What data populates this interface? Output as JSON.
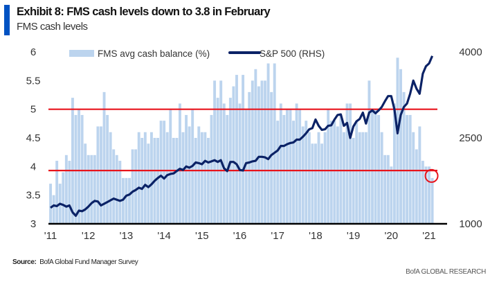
{
  "header": {
    "title": "Exhibit 8: FMS cash levels down to 3.8 in February",
    "subtitle": "FMS cash levels"
  },
  "footer": {
    "source_label": "Source:",
    "source_text": "BofA Global Fund Manager Survey",
    "brand": "BofA GLOBAL RESEARCH"
  },
  "colors": {
    "bars": "#bcd4ee",
    "line": "#0b2266",
    "reference_lines": "#e8141c",
    "accent": "#0052c2"
  },
  "chart_data": {
    "type": "bar+line",
    "x_tick_labels": [
      "'11",
      "'12",
      "'13",
      "'14",
      "'15",
      "'16",
      "'17",
      "'18",
      "'19",
      "'20",
      "'21"
    ],
    "x_start": "2011-01",
    "x_end": "2021-02",
    "frequency": "monthly",
    "y_left": {
      "range": [
        3,
        6
      ],
      "ticks": [
        "3",
        "3.5",
        "4",
        "4.5",
        "5",
        "5.5",
        "6"
      ]
    },
    "y_right": {
      "range": [
        1000,
        4000
      ],
      "ticks": [
        "1000",
        "2500",
        "4000"
      ]
    },
    "legend_position": "top",
    "series": [
      {
        "name": "FMS avg cash balance (%)",
        "type": "bar",
        "axis": "left",
        "values": [
          3.7,
          3.5,
          4.1,
          3.7,
          3.9,
          4.2,
          4.1,
          5.2,
          4.9,
          5.0,
          4.9,
          4.4,
          4.2,
          4.2,
          4.2,
          4.7,
          4.7,
          5.3,
          4.9,
          4.6,
          4.3,
          4.2,
          4.1,
          3.8,
          3.8,
          3.8,
          4.3,
          4.3,
          4.6,
          4.5,
          4.6,
          4.4,
          4.6,
          4.5,
          4.5,
          4.8,
          4.8,
          4.6,
          5.0,
          4.5,
          4.5,
          5.1,
          4.6,
          4.9,
          4.7,
          5.0,
          4.5,
          4.7,
          4.6,
          4.6,
          4.5,
          4.9,
          5.5,
          5.2,
          5.5,
          5.1,
          4.9,
          5.2,
          5.4,
          5.6,
          5.1,
          5.6,
          5.0,
          5.3,
          5.5,
          5.7,
          5.4,
          5.5,
          5.5,
          5.8,
          5.3,
          5.8,
          4.8,
          5.1,
          4.9,
          5.0,
          5.0,
          4.8,
          5.1,
          5.0,
          4.7,
          4.8,
          4.6,
          4.4,
          4.4,
          4.6,
          4.4,
          4.6,
          5.0,
          4.8,
          4.8,
          4.7,
          4.9,
          4.6,
          5.1,
          5.1,
          4.5,
          4.8,
          4.6,
          4.6,
          4.6,
          5.5,
          5.0,
          5.0,
          4.9,
          4.6,
          4.2,
          4.2,
          4.0,
          5.1,
          5.9,
          5.7,
          5.3,
          4.9,
          4.9,
          4.6,
          4.3,
          4.7,
          4.1,
          4.0,
          4.0,
          3.8
        ]
      },
      {
        "name": "S&P 500 (RHS)",
        "type": "line",
        "axis": "right",
        "values": [
          1280,
          1320,
          1310,
          1350,
          1330,
          1300,
          1320,
          1200,
          1140,
          1230,
          1220,
          1250,
          1300,
          1360,
          1400,
          1390,
          1320,
          1350,
          1380,
          1410,
          1440,
          1420,
          1400,
          1420,
          1490,
          1510,
          1560,
          1590,
          1630,
          1610,
          1680,
          1640,
          1690,
          1750,
          1800,
          1840,
          1790,
          1850,
          1870,
          1880,
          1920,
          1960,
          1940,
          2000,
          1980,
          2010,
          2070,
          2060,
          2040,
          2100,
          2070,
          2090,
          2110,
          2080,
          2110,
          1970,
          1920,
          2080,
          2080,
          2040,
          1940,
          1930,
          2060,
          2070,
          2090,
          2100,
          2170,
          2170,
          2160,
          2130,
          2200,
          2240,
          2280,
          2360,
          2360,
          2390,
          2410,
          2420,
          2470,
          2470,
          2520,
          2580,
          2650,
          2670,
          2820,
          2710,
          2640,
          2650,
          2710,
          2720,
          2820,
          2900,
          2910,
          2710,
          2760,
          2500,
          2700,
          2790,
          2830,
          2940,
          2750,
          2940,
          2980,
          2930,
          2980,
          3040,
          3140,
          3230,
          3230,
          3000,
          2580,
          2900,
          3040,
          3100,
          3270,
          3500,
          3360,
          3270,
          3620,
          3750,
          3800,
          3930
        ]
      }
    ],
    "reference_lines": [
      5.0,
      3.93
    ],
    "annotation": "circle around latest bar (Feb 2021, 3.8)"
  }
}
